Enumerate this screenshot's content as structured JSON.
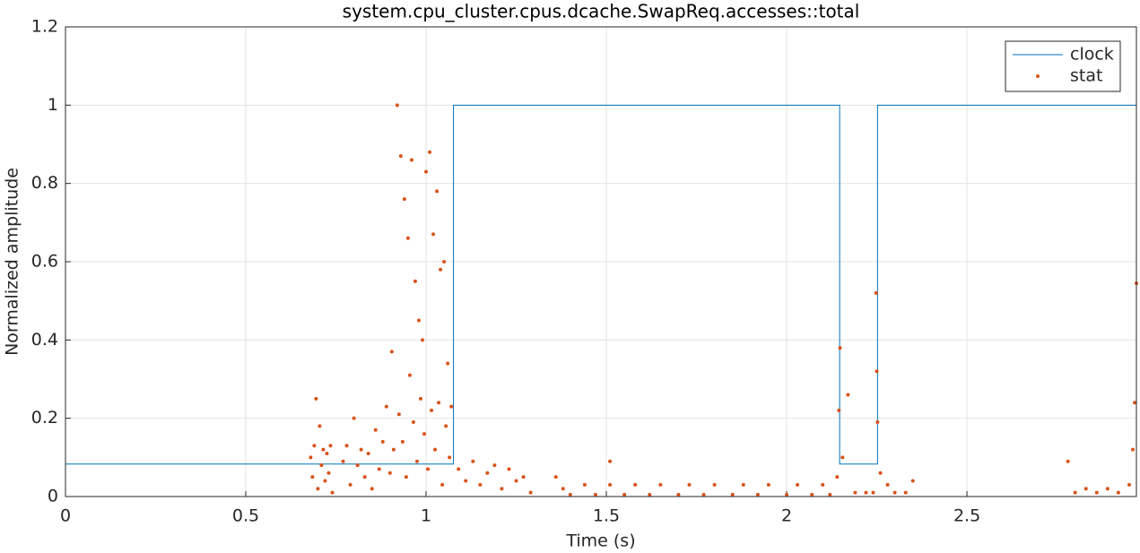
{
  "chart_data": {
    "type": "line",
    "title": "system.cpu_cluster.cpus.dcache.SwapReq.accesses::total",
    "x_label": "Time (s)",
    "y_label": "Normalized amplitude",
    "xlim": [
      0,
      2.97
    ],
    "ylim": [
      0,
      1.2
    ],
    "xticks": [
      0,
      0.5,
      1,
      1.5,
      2,
      2.5
    ],
    "yticks": [
      0,
      0.2,
      0.4,
      0.6,
      0.8,
      1,
      1.2
    ],
    "grid": true,
    "legend": "top-right",
    "series": [
      {
        "name": "clock",
        "kind": "line",
        "color": "#0072bd",
        "x": [
          0,
          1.076,
          1.076,
          2.147,
          2.147,
          2.252,
          2.252,
          2.97
        ],
        "values": [
          0.083,
          0.083,
          1,
          1,
          0.083,
          0.083,
          1,
          1
        ]
      },
      {
        "name": "stat",
        "kind": "scatter",
        "color": "#d95319",
        "x": [
          0.68,
          0.685,
          0.69,
          0.695,
          0.7,
          0.705,
          0.71,
          0.715,
          0.72,
          0.725,
          0.73,
          0.735,
          0.74,
          0.77,
          0.78,
          0.79,
          0.8,
          0.81,
          0.82,
          0.83,
          0.84,
          0.85,
          0.86,
          0.87,
          0.88,
          0.89,
          0.9,
          0.905,
          0.91,
          0.92,
          0.925,
          0.93,
          0.935,
          0.94,
          0.945,
          0.95,
          0.955,
          0.96,
          0.965,
          0.97,
          0.975,
          0.98,
          0.985,
          0.99,
          0.995,
          1.0,
          1.005,
          1.01,
          1.015,
          1.02,
          1.025,
          1.03,
          1.035,
          1.04,
          1.045,
          1.05,
          1.055,
          1.06,
          1.065,
          1.07,
          1.09,
          1.11,
          1.13,
          1.15,
          1.17,
          1.19,
          1.21,
          1.23,
          1.25,
          1.27,
          1.29,
          1.36,
          1.38,
          1.44,
          1.51,
          1.51,
          1.58,
          1.65,
          1.73,
          1.8,
          1.88,
          1.95,
          2.03,
          2.1,
          1.4,
          1.47,
          1.55,
          1.62,
          1.7,
          1.77,
          1.85,
          1.92,
          2.0,
          2.07,
          2.12,
          2.14,
          2.145,
          2.148,
          2.155,
          2.17,
          2.19,
          2.22,
          2.24,
          2.248,
          2.25,
          2.252,
          2.26,
          2.28,
          2.3,
          2.33,
          2.35,
          2.78,
          2.8,
          2.83,
          2.86,
          2.89,
          2.92,
          2.95,
          2.96,
          2.965,
          2.97
        ],
        "values": [
          0.1,
          0.05,
          0.13,
          0.25,
          0.02,
          0.18,
          0.08,
          0.12,
          0.04,
          0.11,
          0.06,
          0.13,
          0.01,
          0.09,
          0.13,
          0.03,
          0.2,
          0.08,
          0.12,
          0.05,
          0.11,
          0.02,
          0.17,
          0.07,
          0.14,
          0.23,
          0.06,
          0.37,
          0.12,
          1.0,
          0.21,
          0.87,
          0.14,
          0.76,
          0.05,
          0.66,
          0.31,
          0.86,
          0.19,
          0.55,
          0.09,
          0.45,
          0.25,
          0.4,
          0.16,
          0.83,
          0.07,
          0.88,
          0.22,
          0.67,
          0.12,
          0.78,
          0.24,
          0.58,
          0.03,
          0.6,
          0.18,
          0.34,
          0.1,
          0.23,
          0.07,
          0.04,
          0.09,
          0.03,
          0.06,
          0.08,
          0.02,
          0.07,
          0.04,
          0.05,
          0.01,
          0.05,
          0.02,
          0.03,
          0.09,
          0.03,
          0.03,
          0.03,
          0.03,
          0.03,
          0.03,
          0.03,
          0.03,
          0.03,
          0.005,
          0.005,
          0.005,
          0.005,
          0.005,
          0.005,
          0.005,
          0.005,
          0.005,
          0.005,
          0.005,
          0.05,
          0.22,
          0.38,
          0.1,
          0.26,
          0.01,
          0.01,
          0.01,
          0.52,
          0.32,
          0.19,
          0.06,
          0.03,
          0.01,
          0.01,
          0.04,
          0.09,
          0.01,
          0.02,
          0.01,
          0.02,
          0.01,
          0.03,
          0.12,
          0.24,
          0.545
        ]
      }
    ]
  }
}
